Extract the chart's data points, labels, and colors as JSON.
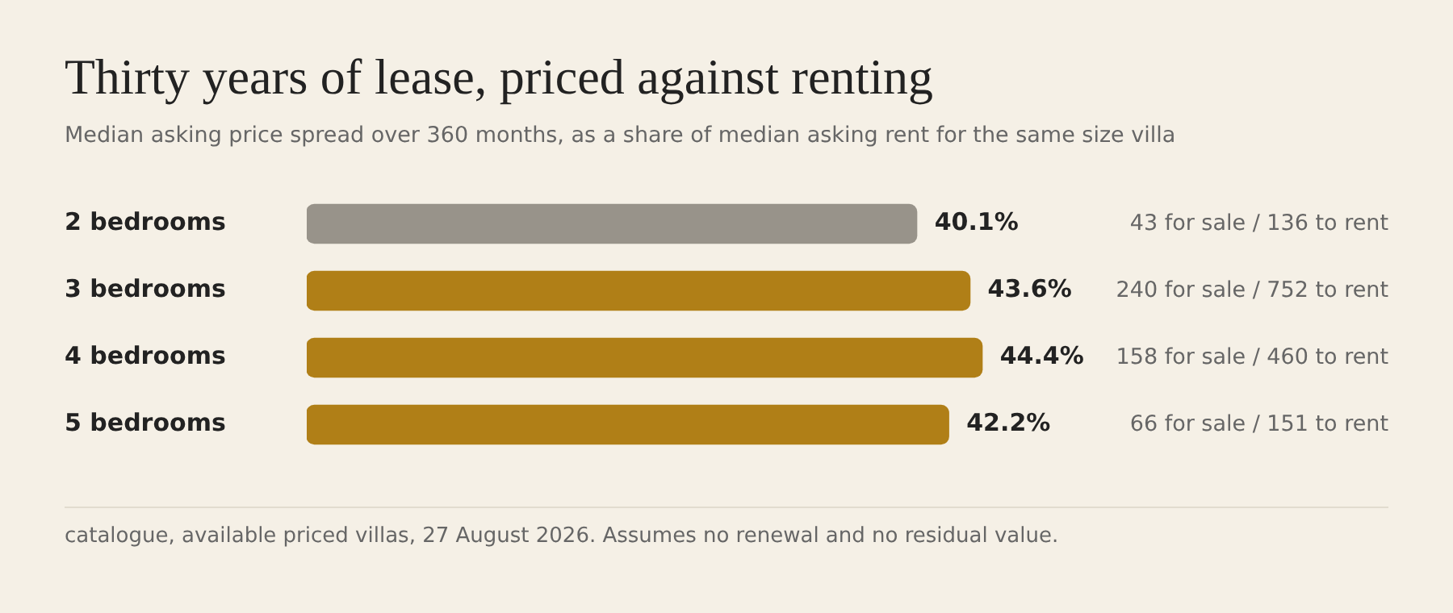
{
  "chart_data": {
    "type": "bar",
    "orientation": "horizontal",
    "title": "Thirty years of lease, priced against renting",
    "subtitle": "Median asking price spread over 360 months, as a share of median asking rent for the same size villa",
    "categories": [
      "2 bedrooms",
      "3 bedrooms",
      "4 bedrooms",
      "5 bedrooms"
    ],
    "values": [
      40.1,
      43.6,
      44.4,
      42.2
    ],
    "colors": [
      "#98938a",
      "#b07f17",
      "#b07f17",
      "#b07f17"
    ],
    "value_labels": [
      "40.1%",
      "43.6%",
      "44.4%",
      "42.2%"
    ],
    "annotations": [
      "43 for sale / 136 to rent",
      "240 for sale / 752 to rent",
      "158 for sale / 460 to rent",
      "66 for sale / 151 to rent",
      "catalogue, available priced villas, 27 August 2026. Assumes no renewal and no residual value."
    ]
  }
}
